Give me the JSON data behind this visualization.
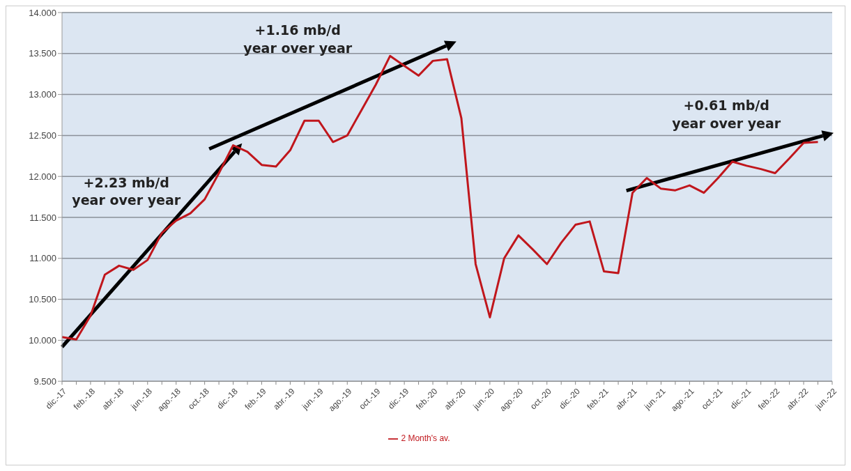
{
  "chart_data": {
    "type": "line",
    "categories": [
      "dic.-17",
      null,
      "feb.-18",
      null,
      "abr.-18",
      null,
      "jun.-18",
      null,
      "ago.-18",
      null,
      "oct.-18",
      null,
      "dic.-18",
      null,
      "feb.-19",
      null,
      "abr.-19",
      null,
      "jun.-19",
      null,
      "ago.-19",
      null,
      "oct.-19",
      null,
      "dic.-19",
      null,
      "feb.-20",
      null,
      "abr.-20",
      null,
      "jun.-20",
      null,
      "ago.-20",
      null,
      "oct.-20",
      null,
      "dic.-20",
      null,
      "feb.-21",
      null,
      "abr.-21",
      null,
      "jun.-21",
      null,
      "ago.-21",
      null,
      "oct.-21",
      null,
      "dic.-21",
      null,
      "feb.-22",
      null,
      "abr.-22",
      null,
      "jun.-22"
    ],
    "series": [
      {
        "name": "2 Month's av.",
        "color": "#c0161c",
        "values": [
          10.04,
          10.01,
          10.3,
          10.8,
          10.91,
          10.86,
          10.98,
          11.31,
          11.46,
          11.55,
          11.72,
          12.04,
          12.38,
          12.3,
          12.14,
          12.12,
          12.32,
          12.68,
          12.68,
          12.42,
          12.5,
          12.81,
          13.12,
          13.47,
          13.35,
          13.23,
          13.41,
          13.43,
          12.71,
          10.93,
          10.28,
          11.0,
          11.28,
          11.11,
          10.93,
          11.19,
          11.41,
          11.45,
          10.84,
          10.82,
          11.8,
          11.98,
          11.85,
          11.83,
          11.89,
          11.8,
          11.98,
          12.18,
          12.13,
          12.09,
          12.04,
          12.22,
          12.41,
          12.42,
          null
        ]
      }
    ],
    "ylim": [
      9.5,
      14
    ],
    "yticks": [
      {
        "value": 9.5,
        "label": "9.500"
      },
      {
        "value": 10,
        "label": "10.000"
      },
      {
        "value": 10.5,
        "label": "10.500"
      },
      {
        "value": 11,
        "label": "11.000"
      },
      {
        "value": 11.5,
        "label": "11.500"
      },
      {
        "value": 12,
        "label": "12.000"
      },
      {
        "value": 12.5,
        "label": "12.500"
      },
      {
        "value": 13,
        "label": "13.000"
      },
      {
        "value": 13.5,
        "label": "13.500"
      },
      {
        "value": 14,
        "label": "14.000"
      }
    ],
    "annotations": [
      "+2.23 mb/d\nyear over year",
      "+1.16 mb/d\nyear over year",
      "+0.61 mb/d\nyear over year"
    ],
    "grid": "y",
    "legend": "bottom",
    "marker": "none",
    "line_style": "solid"
  }
}
